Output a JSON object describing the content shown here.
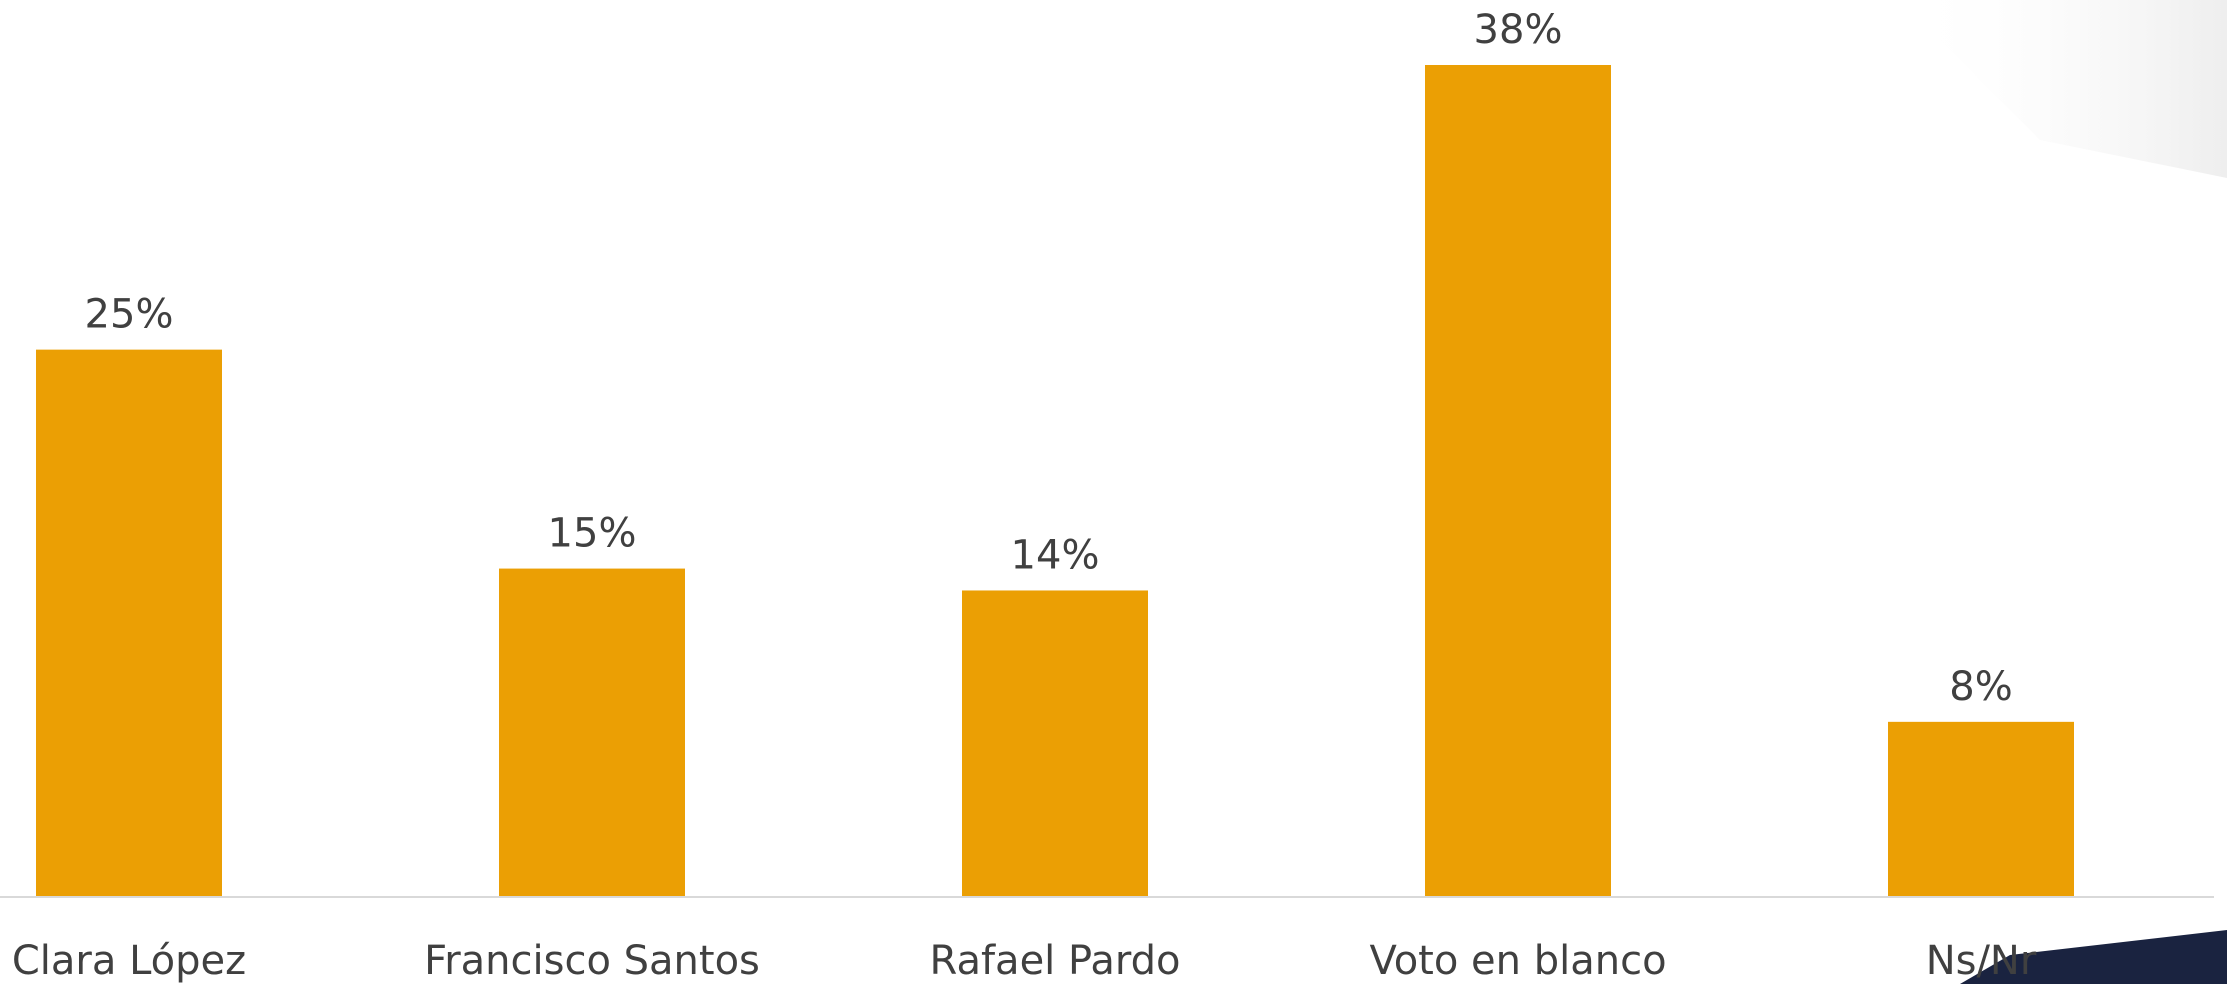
{
  "chart_data": {
    "type": "bar",
    "categories": [
      "Clara López",
      "Francisco Santos",
      "Rafael Pardo",
      "Voto en blanco",
      "Ns/Nr"
    ],
    "values": [
      25,
      15,
      14,
      38,
      8
    ],
    "value_labels": [
      "25%",
      "15%",
      "14%",
      "38%",
      "8%"
    ],
    "unit": "%",
    "ylim": [
      0,
      38
    ],
    "grid": false,
    "legend": "none",
    "bar_color": "#EB9F04",
    "axis_color": "#D9D9D9",
    "text_color": "#404040"
  }
}
